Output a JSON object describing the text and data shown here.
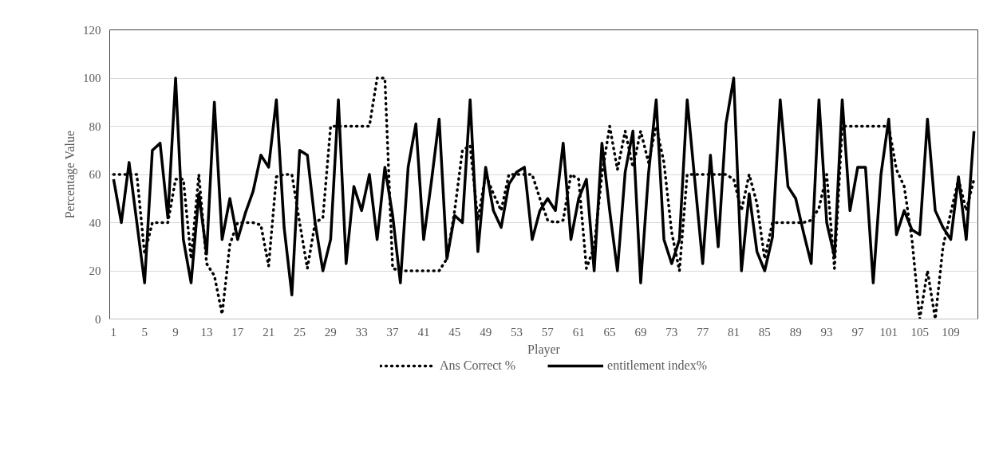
{
  "chart_data": {
    "type": "line",
    "xlabel": "Player",
    "ylabel": "Percentage Value",
    "categories": [
      "1",
      null,
      null,
      null,
      "5",
      null,
      null,
      null,
      "9",
      null,
      null,
      null,
      "13",
      null,
      null,
      null,
      "17",
      null,
      null,
      null,
      "21",
      null,
      null,
      null,
      "25",
      null,
      null,
      null,
      "29",
      null,
      null,
      null,
      "33",
      null,
      null,
      null,
      "37",
      null,
      null,
      null,
      "41",
      null,
      null,
      null,
      "45",
      null,
      null,
      null,
      "49",
      null,
      null,
      null,
      "53",
      null,
      null,
      null,
      "57",
      null,
      null,
      null,
      "61",
      null,
      null,
      null,
      "65",
      null,
      null,
      null,
      "69",
      null,
      null,
      null,
      "73",
      null,
      null,
      null,
      "77",
      null,
      null,
      null,
      "81",
      null,
      null,
      null,
      "85",
      null,
      null,
      null,
      "89",
      null,
      null,
      null,
      "93",
      null,
      null,
      null,
      "97",
      null,
      null,
      null,
      "101",
      null,
      null,
      null,
      "105",
      null,
      null,
      null,
      "109",
      null,
      null,
      null
    ],
    "series": [
      {
        "name": "Ans Correct %",
        "color": "#000000",
        "line_style": "dotted",
        "values": [
          60,
          60,
          60,
          60,
          27,
          40,
          40,
          40,
          58,
          58,
          25,
          60,
          23,
          18,
          2,
          31,
          40,
          40,
          40,
          39,
          22,
          59,
          60,
          60,
          40,
          21,
          40,
          42,
          80,
          80,
          80,
          80,
          80,
          80,
          100,
          100,
          21,
          20,
          20,
          20,
          20,
          20,
          20,
          25,
          45,
          70,
          72,
          41,
          60,
          52,
          45,
          60,
          60,
          60,
          60,
          50,
          41,
          40,
          41,
          60,
          58,
          21,
          30,
          60,
          80,
          62,
          78,
          63,
          78,
          65,
          80,
          65,
          36,
          20,
          60,
          60,
          60,
          60,
          60,
          60,
          58,
          45,
          60,
          48,
          25,
          40,
          40,
          40,
          40,
          40,
          41,
          46,
          60,
          21,
          80,
          80,
          80,
          80,
          80,
          80,
          80,
          62,
          55,
          33,
          0,
          20,
          0,
          30,
          44,
          58,
          45,
          58
        ]
      },
      {
        "name": "entitlement index%",
        "color": "#000000",
        "line_style": "solid",
        "values": [
          58,
          40,
          65,
          40,
          15,
          70,
          73,
          42,
          100,
          33,
          15,
          52,
          27,
          90,
          33,
          50,
          33,
          44,
          53,
          68,
          63,
          91,
          38,
          10,
          70,
          68,
          40,
          20,
          33,
          91,
          23,
          55,
          45,
          60,
          33,
          63,
          43,
          15,
          63,
          81,
          33,
          57,
          83,
          25,
          43,
          40,
          91,
          28,
          63,
          45,
          38,
          56,
          61,
          63,
          33,
          45,
          50,
          45,
          73,
          33,
          50,
          58,
          20,
          73,
          45,
          20,
          61,
          78,
          15,
          60,
          91,
          33,
          23,
          33,
          91,
          57,
          23,
          68,
          30,
          81,
          100,
          20,
          52,
          28,
          20,
          34,
          91,
          55,
          50,
          36,
          23,
          91,
          40,
          26,
          91,
          45,
          63,
          63,
          15,
          60,
          83,
          35,
          45,
          37,
          35,
          83,
          45,
          38,
          33,
          59,
          33,
          78
        ]
      }
    ],
    "ylim": [
      0,
      120
    ],
    "yticks": [
      0,
      20,
      40,
      60,
      80,
      100,
      120
    ],
    "grid": "y",
    "legend": "bottom"
  }
}
